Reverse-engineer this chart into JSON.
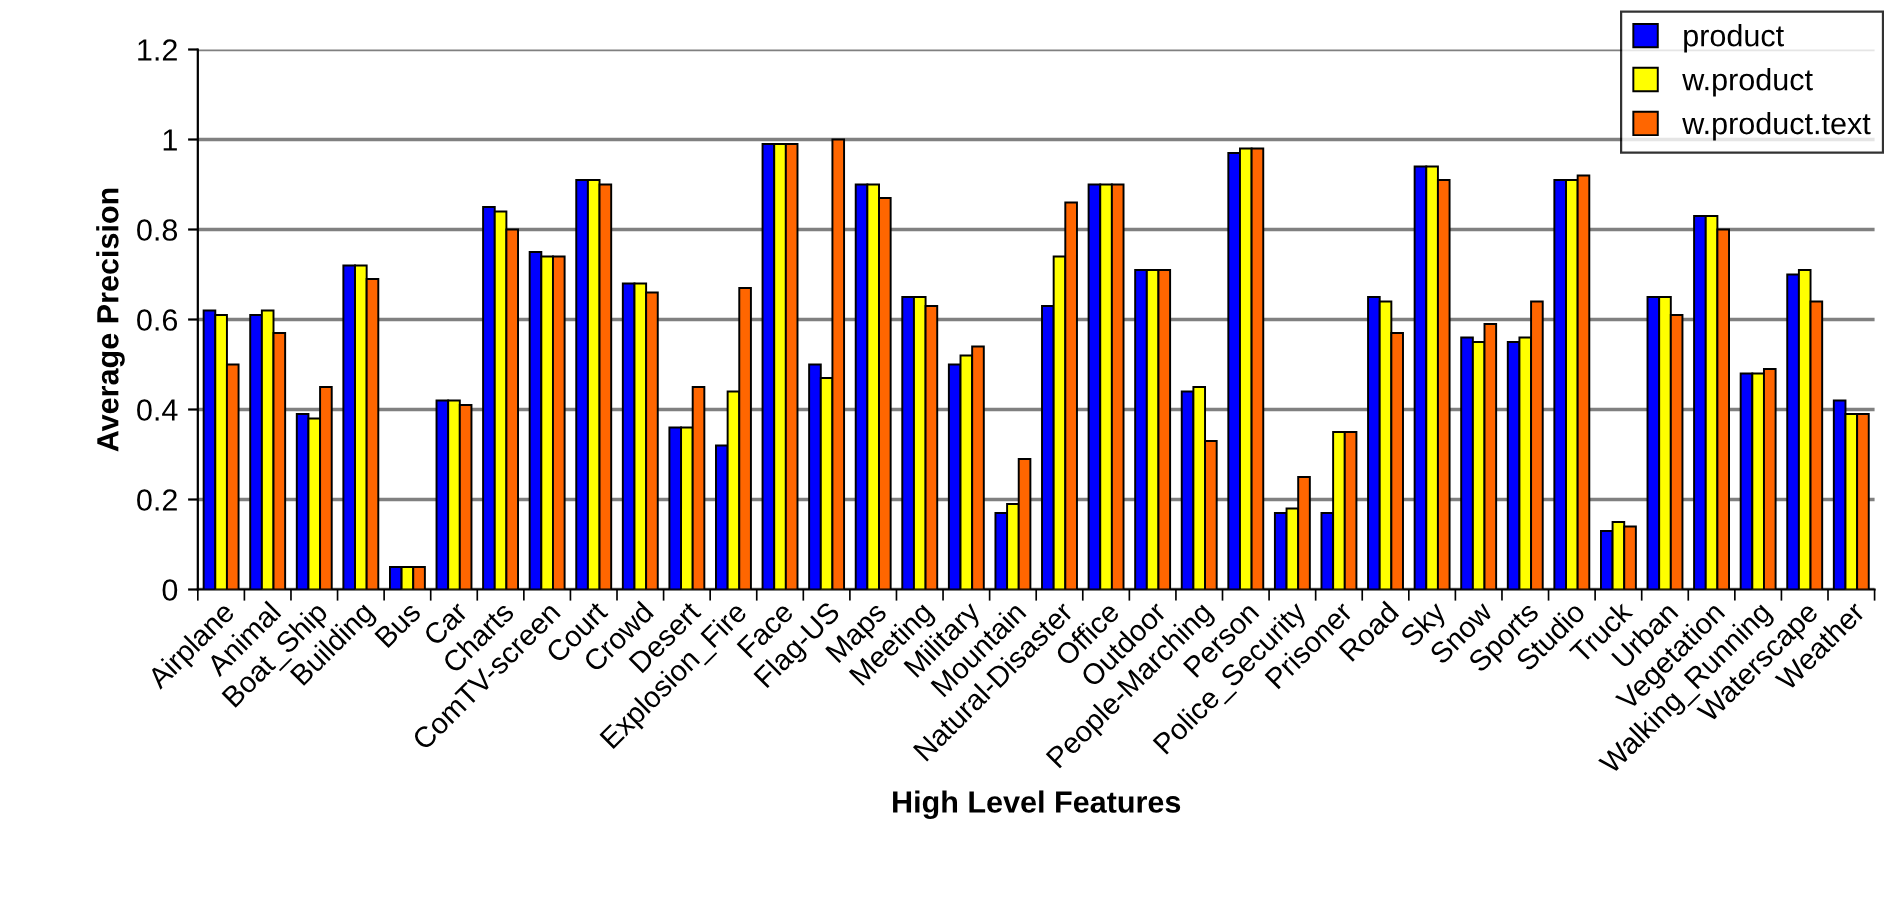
{
  "chart_data": {
    "type": "bar",
    "xlabel": "High Level Features",
    "ylabel": "Average Precision",
    "categories": [
      "Airplane",
      "Animal",
      "Boat_Ship",
      "Building",
      "Bus",
      "Car",
      "Charts",
      "ComTV-screen",
      "Court",
      "Crowd",
      "Desert",
      "Explosion_Fire",
      "Face",
      "Flag-US",
      "Maps",
      "Meeting",
      "Military",
      "Mountain",
      "Natural-Disaster",
      "Office",
      "Outdoor",
      "People-Marching",
      "Person",
      "Police_Security",
      "Prisoner",
      "Road",
      "Sky",
      "Snow",
      "Sports",
      "Studio",
      "Truck",
      "Urban",
      "Vegetation",
      "Walking_Running",
      "Waterscape",
      "Weather"
    ],
    "series": [
      {
        "name": "product",
        "color": "#0000ff",
        "values": [
          0.62,
          0.61,
          0.39,
          0.72,
          0.05,
          0.42,
          0.85,
          0.75,
          0.91,
          0.68,
          0.36,
          0.32,
          0.99,
          0.5,
          0.9,
          0.65,
          0.5,
          0.17,
          0.63,
          0.9,
          0.71,
          0.44,
          0.97,
          0.17,
          0.17,
          0.65,
          0.94,
          0.56,
          0.55,
          0.91,
          0.13,
          0.65,
          0.83,
          0.48,
          0.7,
          0.42
        ]
      },
      {
        "name": "w.product",
        "color": "#ffff00",
        "values": [
          0.61,
          0.62,
          0.38,
          0.72,
          0.05,
          0.42,
          0.84,
          0.74,
          0.91,
          0.68,
          0.36,
          0.44,
          0.99,
          0.47,
          0.9,
          0.65,
          0.52,
          0.19,
          0.74,
          0.9,
          0.71,
          0.45,
          0.98,
          0.18,
          0.35,
          0.64,
          0.94,
          0.55,
          0.56,
          0.91,
          0.15,
          0.65,
          0.83,
          0.48,
          0.71,
          0.39
        ]
      },
      {
        "name": "w.product.text",
        "color": "#ff6600",
        "values": [
          0.5,
          0.57,
          0.45,
          0.69,
          0.05,
          0.41,
          0.8,
          0.74,
          0.9,
          0.66,
          0.45,
          0.67,
          0.99,
          1.0,
          0.87,
          0.63,
          0.54,
          0.29,
          0.86,
          0.9,
          0.71,
          0.33,
          0.98,
          0.25,
          0.35,
          0.57,
          0.91,
          0.59,
          0.64,
          0.92,
          0.14,
          0.61,
          0.8,
          0.49,
          0.64,
          0.39
        ]
      }
    ],
    "ylim": [
      0,
      1.2
    ],
    "yticks": [
      0,
      0.2,
      0.4,
      0.6,
      0.8,
      1,
      1.2
    ],
    "grid": "y",
    "legend": "top right"
  }
}
